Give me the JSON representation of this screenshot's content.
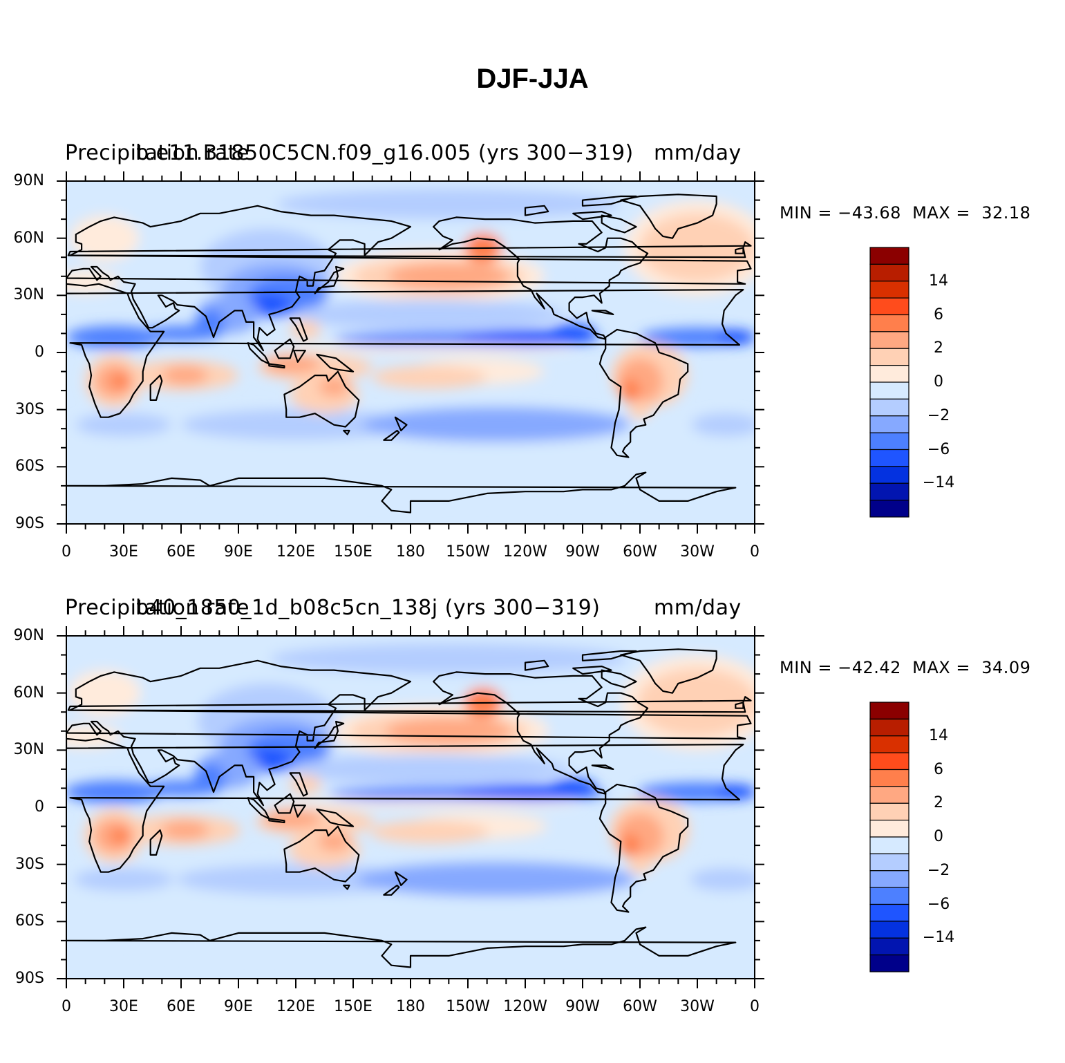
{
  "title": "DJF-JJA",
  "colorbar": {
    "colors": [
      "#8b0000",
      "#b81e00",
      "#d93000",
      "#ff4c1c",
      "#ff7f4c",
      "#ffa882",
      "#ffd1b5",
      "#ffebdc",
      "#d6eaff",
      "#b4cdff",
      "#86a9ff",
      "#4d80ff",
      "#1f55ff",
      "#0432e0",
      "#0215b0",
      "#00008a"
    ],
    "labels": [
      "14",
      "6",
      "2",
      "0",
      "−2",
      "−6",
      "−14"
    ]
  },
  "axes": {
    "lat_labels": [
      "90N",
      "60N",
      "30N",
      "0",
      "30S",
      "60S",
      "90S"
    ],
    "lon_labels": [
      "0",
      "30E",
      "60E",
      "90E",
      "120E",
      "150E",
      "180",
      "150W",
      "120W",
      "90W",
      "60W",
      "30W",
      "0"
    ]
  },
  "panels": [
    {
      "left_string": "Precipitation rate",
      "center_string": "b.e11.B1850C5CN.f09_g16.005 (yrs 300−319)",
      "right_string": "mm/day",
      "minmax": "MIN = −43.68  MAX =  32.18"
    },
    {
      "left_string": "Precipitation rate",
      "center_string": "b40_1850_1d_b08c5cn_138j (yrs 300−319)",
      "right_string": "mm/day",
      "minmax": "MIN = −42.42  MAX =  34.09"
    }
  ]
}
